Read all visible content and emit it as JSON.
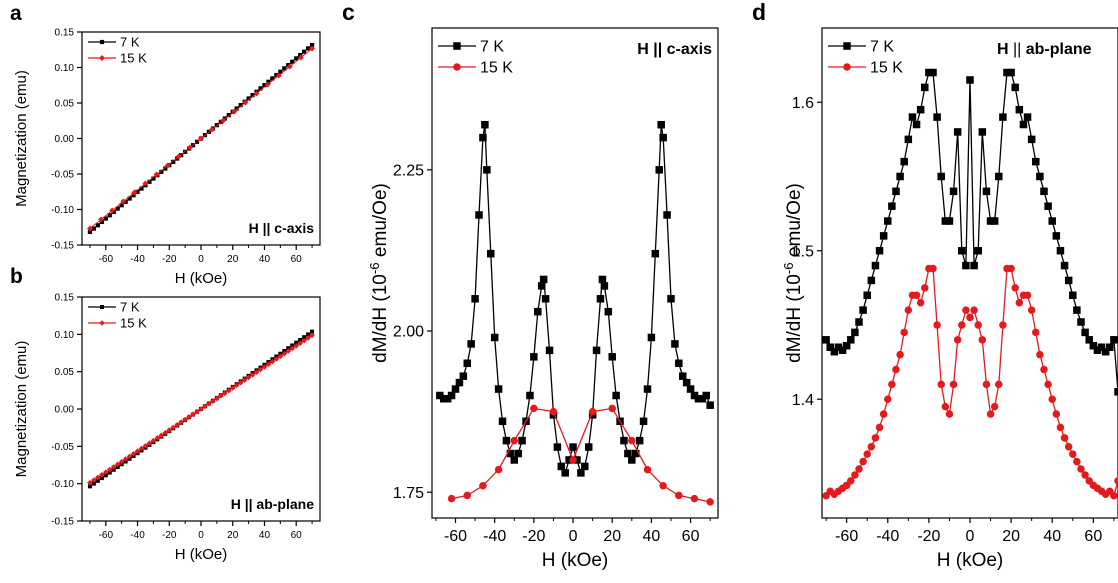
{
  "colors": {
    "series_7K": "#000000",
    "series_15K": "#e41a1c",
    "axis": "#000000"
  },
  "chart_data": [
    {
      "panel": "a",
      "type": "line",
      "annotation": "H || c-axis",
      "xlabel": "H (kOe)",
      "ylabel": "Magnetization (emu)",
      "xlim": [
        -75,
        75
      ],
      "ylim": [
        -0.15,
        0.15
      ],
      "xticks": [
        -60,
        -40,
        -20,
        0,
        20,
        40,
        60
      ],
      "yticks": [
        -0.15,
        -0.1,
        -0.05,
        0.0,
        0.05,
        0.1,
        0.15
      ],
      "ytick_labels": [
        "-0.15",
        "-0.10",
        "-0.05",
        "0.00",
        "0.05",
        "0.10",
        "0.15"
      ],
      "legend_position": "top-left",
      "series": [
        {
          "name": "7 K",
          "slope": 0.00188,
          "x_range": [
            -70,
            70
          ],
          "step": 2.5,
          "marker": "square",
          "color": "#000000"
        },
        {
          "name": "15 K",
          "slope": 0.00181,
          "x_range": [
            -70,
            70
          ],
          "step": 7,
          "marker": "diamond",
          "color": "#e41a1c"
        }
      ]
    },
    {
      "panel": "b",
      "type": "line",
      "annotation": "H || ab-plane",
      "xlabel": "H (kOe)",
      "ylabel": "Magnetization (emu)",
      "xlim": [
        -75,
        75
      ],
      "ylim": [
        -0.15,
        0.15
      ],
      "xticks": [
        -60,
        -40,
        -20,
        0,
        20,
        40,
        60
      ],
      "yticks": [
        -0.15,
        -0.1,
        -0.05,
        0.0,
        0.05,
        0.1,
        0.15
      ],
      "ytick_labels": [
        "-0.15",
        "-0.10",
        "-0.05",
        "0.00",
        "0.05",
        "0.10",
        "0.15"
      ],
      "legend_position": "top-left",
      "series": [
        {
          "name": "7 K",
          "slope": 0.00148,
          "x_range": [
            -70,
            70
          ],
          "step": 2.5,
          "marker": "square",
          "color": "#000000"
        },
        {
          "name": "15 K",
          "slope": 0.00141,
          "x_range": [
            -70,
            70
          ],
          "step": 2.5,
          "marker": "diamond",
          "color": "#e41a1c"
        }
      ]
    },
    {
      "panel": "c",
      "type": "line",
      "annotation": "H || c-axis",
      "xlabel": "H (kOe)",
      "ylabel": "dM/dH (10",
      "ylabel_sup": "-6",
      "ylabel_tail": " emu/Oe)",
      "xlim": [
        -72,
        74
      ],
      "ylim": [
        1.71,
        2.47
      ],
      "xticks": [
        -60,
        -40,
        -20,
        0,
        20,
        40,
        60
      ],
      "yticks": [
        1.75,
        2.0,
        2.25
      ],
      "ytick_labels": [
        "1.75",
        "2.00",
        "2.25"
      ],
      "legend_position": "top-left",
      "series": [
        {
          "name": "7 K",
          "marker": "square",
          "color": "#000000",
          "x": [
            -68,
            -66,
            -64,
            -62,
            -60,
            -58,
            -56,
            -54,
            -52,
            -50,
            -48,
            -46,
            -45,
            -44,
            -42,
            -40,
            -38,
            -36,
            -34,
            -32,
            -30,
            -28,
            -26,
            -24,
            -22,
            -20,
            -18,
            -16,
            -15,
            -14,
            -12,
            -10,
            -8,
            -6,
            -4,
            -2,
            0,
            2,
            4,
            6,
            8,
            10,
            12,
            14,
            15,
            16,
            18,
            20,
            22,
            24,
            26,
            28,
            30,
            32,
            34,
            36,
            38,
            40,
            42,
            44,
            45,
            46,
            48,
            50,
            52,
            54,
            56,
            58,
            60,
            62,
            64,
            66,
            68,
            70
          ],
          "y": [
            1.9,
            1.895,
            1.895,
            1.9,
            1.91,
            1.92,
            1.93,
            1.95,
            1.98,
            2.05,
            2.18,
            2.3,
            2.32,
            2.25,
            2.12,
            1.99,
            1.91,
            1.86,
            1.83,
            1.81,
            1.8,
            1.81,
            1.83,
            1.86,
            1.9,
            1.96,
            2.03,
            2.07,
            2.08,
            2.05,
            1.97,
            1.87,
            1.82,
            1.79,
            1.78,
            1.8,
            1.82,
            1.8,
            1.78,
            1.79,
            1.82,
            1.87,
            1.97,
            2.05,
            2.08,
            2.07,
            2.03,
            1.96,
            1.9,
            1.86,
            1.83,
            1.81,
            1.8,
            1.81,
            1.83,
            1.86,
            1.91,
            1.99,
            2.12,
            2.25,
            2.32,
            2.3,
            2.18,
            2.05,
            1.98,
            1.95,
            1.93,
            1.92,
            1.91,
            1.9,
            1.895,
            1.895,
            1.9,
            1.885
          ]
        },
        {
          "name": "15 K",
          "marker": "circle",
          "color": "#e41a1c",
          "x": [
            -62,
            -54,
            -46,
            -38,
            -30,
            -20,
            -10,
            0,
            10,
            20,
            30,
            38,
            46,
            54,
            62,
            70
          ],
          "y": [
            1.74,
            1.745,
            1.76,
            1.785,
            1.83,
            1.88,
            1.875,
            1.8,
            1.875,
            1.88,
            1.83,
            1.785,
            1.76,
            1.745,
            1.74,
            1.735
          ]
        }
      ]
    },
    {
      "panel": "d",
      "type": "line",
      "annotation": "H",
      "annotation_parallel": "||",
      "annotation_tail": "ab-plane",
      "xlabel": "H (kOe)",
      "ylabel": "dM/dH (10",
      "ylabel_sup": "-6",
      "ylabel_tail": " emu/Oe)",
      "xlim": [
        -72,
        72
      ],
      "ylim": [
        1.32,
        1.65
      ],
      "xticks": [
        -60,
        -40,
        -20,
        0,
        20,
        40,
        60
      ],
      "yticks": [
        1.4,
        1.5,
        1.6
      ],
      "ytick_labels": [
        "1.4",
        "1.5",
        "1.6"
      ],
      "legend_position": "top-left",
      "series": [
        {
          "name": "7 K",
          "marker": "square",
          "color": "#000000",
          "x": [
            -70,
            -68,
            -66,
            -64,
            -62,
            -60,
            -58,
            -56,
            -54,
            -52,
            -50,
            -48,
            -46,
            -44,
            -42,
            -40,
            -38,
            -36,
            -34,
            -32,
            -30,
            -28,
            -26,
            -24,
            -22,
            -20,
            -18,
            -16,
            -14,
            -12,
            -10,
            -8,
            -6,
            -4,
            -2,
            0,
            2,
            4,
            6,
            8,
            10,
            12,
            14,
            16,
            18,
            20,
            22,
            24,
            26,
            28,
            30,
            32,
            34,
            36,
            38,
            40,
            42,
            44,
            46,
            48,
            50,
            52,
            54,
            56,
            58,
            60,
            62,
            64,
            66,
            68,
            70,
            72
          ],
          "y": [
            1.44,
            1.435,
            1.432,
            1.435,
            1.433,
            1.436,
            1.44,
            1.445,
            1.452,
            1.46,
            1.47,
            1.48,
            1.49,
            1.5,
            1.51,
            1.52,
            1.53,
            1.54,
            1.55,
            1.56,
            1.575,
            1.59,
            1.585,
            1.595,
            1.61,
            1.62,
            1.62,
            1.59,
            1.55,
            1.52,
            1.52,
            1.54,
            1.58,
            1.5,
            1.49,
            1.615,
            1.49,
            1.5,
            1.58,
            1.54,
            1.52,
            1.52,
            1.55,
            1.59,
            1.62,
            1.62,
            1.61,
            1.595,
            1.585,
            1.59,
            1.575,
            1.56,
            1.55,
            1.54,
            1.53,
            1.52,
            1.51,
            1.5,
            1.49,
            1.48,
            1.47,
            1.46,
            1.452,
            1.445,
            1.44,
            1.436,
            1.433,
            1.435,
            1.432,
            1.435,
            1.44,
            1.405
          ]
        },
        {
          "name": "15 K",
          "marker": "circle",
          "color": "#e41a1c",
          "x": [
            -70,
            -68,
            -66,
            -64,
            -62,
            -60,
            -58,
            -56,
            -54,
            -52,
            -50,
            -48,
            -46,
            -44,
            -42,
            -40,
            -38,
            -36,
            -34,
            -32,
            -30,
            -28,
            -26,
            -24,
            -22,
            -20,
            -18,
            -16,
            -14,
            -12,
            -10,
            -8,
            -6,
            -4,
            -2,
            0,
            2,
            4,
            6,
            8,
            10,
            12,
            14,
            16,
            18,
            20,
            22,
            24,
            26,
            28,
            30,
            32,
            34,
            36,
            38,
            40,
            42,
            44,
            46,
            48,
            50,
            52,
            54,
            56,
            58,
            60,
            62,
            64,
            66,
            68,
            70,
            72
          ],
          "y": [
            1.335,
            1.338,
            1.336,
            1.338,
            1.34,
            1.342,
            1.345,
            1.349,
            1.353,
            1.358,
            1.363,
            1.368,
            1.374,
            1.381,
            1.39,
            1.4,
            1.41,
            1.42,
            1.43,
            1.445,
            1.46,
            1.47,
            1.47,
            1.465,
            1.475,
            1.488,
            1.488,
            1.45,
            1.41,
            1.395,
            1.39,
            1.41,
            1.44,
            1.45,
            1.46,
            1.455,
            1.46,
            1.45,
            1.44,
            1.41,
            1.39,
            1.395,
            1.41,
            1.45,
            1.488,
            1.488,
            1.475,
            1.465,
            1.47,
            1.47,
            1.46,
            1.445,
            1.43,
            1.42,
            1.41,
            1.4,
            1.39,
            1.381,
            1.374,
            1.368,
            1.363,
            1.358,
            1.353,
            1.349,
            1.345,
            1.342,
            1.34,
            1.338,
            1.336,
            1.338,
            1.335,
            1.345
          ]
        }
      ]
    }
  ],
  "panel_labels": [
    "a",
    "b",
    "c",
    "d"
  ]
}
